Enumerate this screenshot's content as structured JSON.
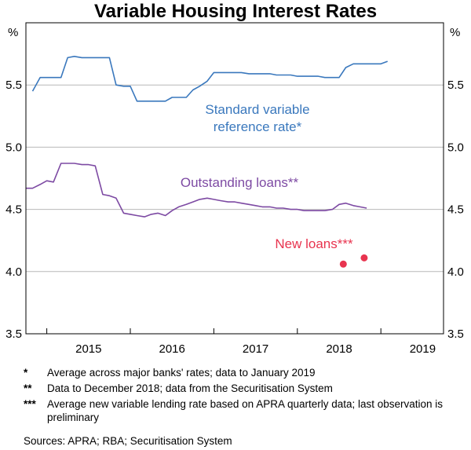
{
  "chart_data": {
    "type": "line",
    "title": "Variable Housing Interest Rates",
    "ylabel_left": "%",
    "ylabel_right": "%",
    "ylim": [
      3.5,
      6.0
    ],
    "yticks": [
      "3.5",
      "4.0",
      "4.5",
      "5.0",
      "5.5"
    ],
    "xlim": [
      2014.75,
      2019.75
    ],
    "xticks": [
      {
        "label": "2015",
        "x": 2015.5
      },
      {
        "label": "2016",
        "x": 2016.5
      },
      {
        "label": "2017",
        "x": 2017.5
      },
      {
        "label": "2018",
        "x": 2018.5
      },
      {
        "label": "2019",
        "x": 2019.5
      }
    ],
    "year_dividers": [
      2015,
      2016,
      2017,
      2018,
      2019
    ],
    "grid": true,
    "series": [
      {
        "name": "Standard variable reference rate*",
        "label_lines": [
          "Standard variable",
          "reference rate*"
        ],
        "color": "#3a78bd",
        "x": [
          2014.83,
          2014.92,
          2015.0,
          2015.08,
          2015.17,
          2015.25,
          2015.33,
          2015.42,
          2015.5,
          2015.58,
          2015.67,
          2015.75,
          2015.83,
          2015.92,
          2016.0,
          2016.08,
          2016.17,
          2016.25,
          2016.33,
          2016.42,
          2016.5,
          2016.58,
          2016.67,
          2016.75,
          2016.83,
          2016.92,
          2017.0,
          2017.08,
          2017.17,
          2017.25,
          2017.33,
          2017.42,
          2017.5,
          2017.58,
          2017.67,
          2017.75,
          2017.83,
          2017.92,
          2018.0,
          2018.08,
          2018.17,
          2018.25,
          2018.33,
          2018.42,
          2018.5,
          2018.58,
          2018.67,
          2018.75,
          2018.83,
          2018.92,
          2019.0,
          2019.08
        ],
        "values": [
          5.45,
          5.56,
          5.56,
          5.56,
          5.56,
          5.72,
          5.73,
          5.72,
          5.72,
          5.72,
          5.72,
          5.72,
          5.5,
          5.49,
          5.49,
          5.37,
          5.37,
          5.37,
          5.37,
          5.37,
          5.4,
          5.4,
          5.4,
          5.46,
          5.49,
          5.53,
          5.6,
          5.6,
          5.6,
          5.6,
          5.6,
          5.59,
          5.59,
          5.59,
          5.59,
          5.58,
          5.58,
          5.58,
          5.57,
          5.57,
          5.57,
          5.57,
          5.56,
          5.56,
          5.56,
          5.64,
          5.67,
          5.67,
          5.67,
          5.67,
          5.67,
          5.69
        ]
      },
      {
        "name": "Outstanding loans**",
        "label_lines": [
          "Outstanding loans**"
        ],
        "color": "#7d4aa3",
        "x": [
          2014.75,
          2014.83,
          2014.92,
          2015.0,
          2015.08,
          2015.17,
          2015.25,
          2015.33,
          2015.42,
          2015.5,
          2015.58,
          2015.67,
          2015.75,
          2015.83,
          2015.92,
          2016.0,
          2016.08,
          2016.17,
          2016.25,
          2016.33,
          2016.42,
          2016.5,
          2016.58,
          2016.67,
          2016.75,
          2016.83,
          2016.92,
          2017.0,
          2017.08,
          2017.17,
          2017.25,
          2017.33,
          2017.42,
          2017.5,
          2017.58,
          2017.67,
          2017.75,
          2017.83,
          2017.92,
          2018.0,
          2018.08,
          2018.17,
          2018.25,
          2018.33,
          2018.42,
          2018.5,
          2018.58,
          2018.67,
          2018.75,
          2018.83
        ],
        "values": [
          4.67,
          4.67,
          4.7,
          4.73,
          4.72,
          4.87,
          4.87,
          4.87,
          4.86,
          4.86,
          4.85,
          4.62,
          4.61,
          4.59,
          4.47,
          4.46,
          4.45,
          4.44,
          4.46,
          4.47,
          4.45,
          4.49,
          4.52,
          4.54,
          4.56,
          4.58,
          4.59,
          4.58,
          4.57,
          4.56,
          4.56,
          4.55,
          4.54,
          4.53,
          4.52,
          4.52,
          4.51,
          4.51,
          4.5,
          4.5,
          4.49,
          4.49,
          4.49,
          4.49,
          4.5,
          4.54,
          4.55,
          4.53,
          4.52,
          4.51
        ]
      },
      {
        "name": "New loans***",
        "label_lines": [
          "New loans***"
        ],
        "color": "#e8344f",
        "kind": "points",
        "x": [
          2018.55,
          2018.8
        ],
        "values": [
          4.06,
          4.11
        ]
      }
    ]
  },
  "notes": [
    {
      "symbol": "*",
      "text": "Average across major banks' rates; data to January 2019"
    },
    {
      "symbol": "**",
      "text": "Data to December 2018; data from the Securitisation System"
    },
    {
      "symbol": "***",
      "text": "Average new variable lending rate based on APRA quarterly data; last observation is preliminary"
    }
  ],
  "sources": "Sources: APRA; RBA; Securitisation System"
}
